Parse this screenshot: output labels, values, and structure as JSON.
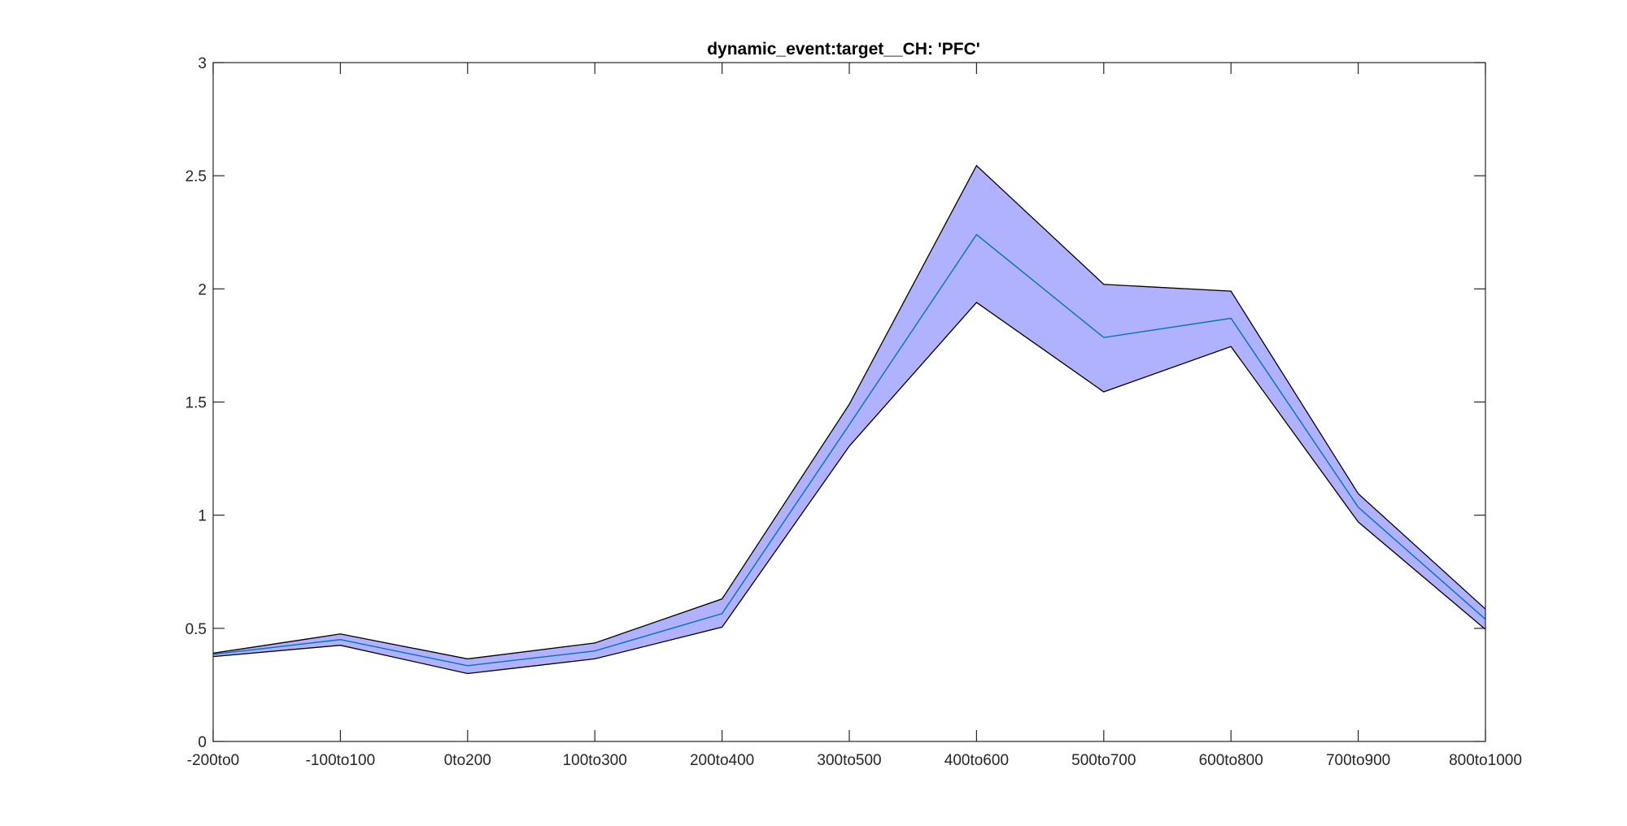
{
  "chart_data": {
    "type": "area",
    "title": "dynamic_event:target__CH: 'PFC'",
    "xlabel": "",
    "ylabel": "",
    "categories": [
      "-200to0",
      "-100to100",
      "0to200",
      "100to300",
      "200to400",
      "300to500",
      "400to600",
      "500to700",
      "600to800",
      "700to900",
      "800to1000"
    ],
    "ylim": [
      0,
      3
    ],
    "yticks": [
      "0",
      "0.5",
      "1",
      "1.5",
      "2",
      "2.5",
      "3"
    ],
    "grid": false,
    "series": [
      {
        "role": "mean",
        "values": [
          0.385,
          0.45,
          0.335,
          0.4,
          0.565,
          1.4,
          2.24,
          1.785,
          1.87,
          1.035,
          0.54
        ]
      },
      {
        "role": "upper",
        "values": [
          0.39,
          0.475,
          0.365,
          0.435,
          0.63,
          1.49,
          2.545,
          2.02,
          1.99,
          1.095,
          0.585
        ]
      },
      {
        "role": "lower",
        "values": [
          0.375,
          0.425,
          0.3,
          0.365,
          0.505,
          1.305,
          1.94,
          1.545,
          1.745,
          0.97,
          0.495
        ]
      }
    ],
    "colors": {
      "band": "#b0b1ff",
      "mean_line": "#0072bd",
      "band_edge": "#000000",
      "axes": "#262626"
    }
  }
}
